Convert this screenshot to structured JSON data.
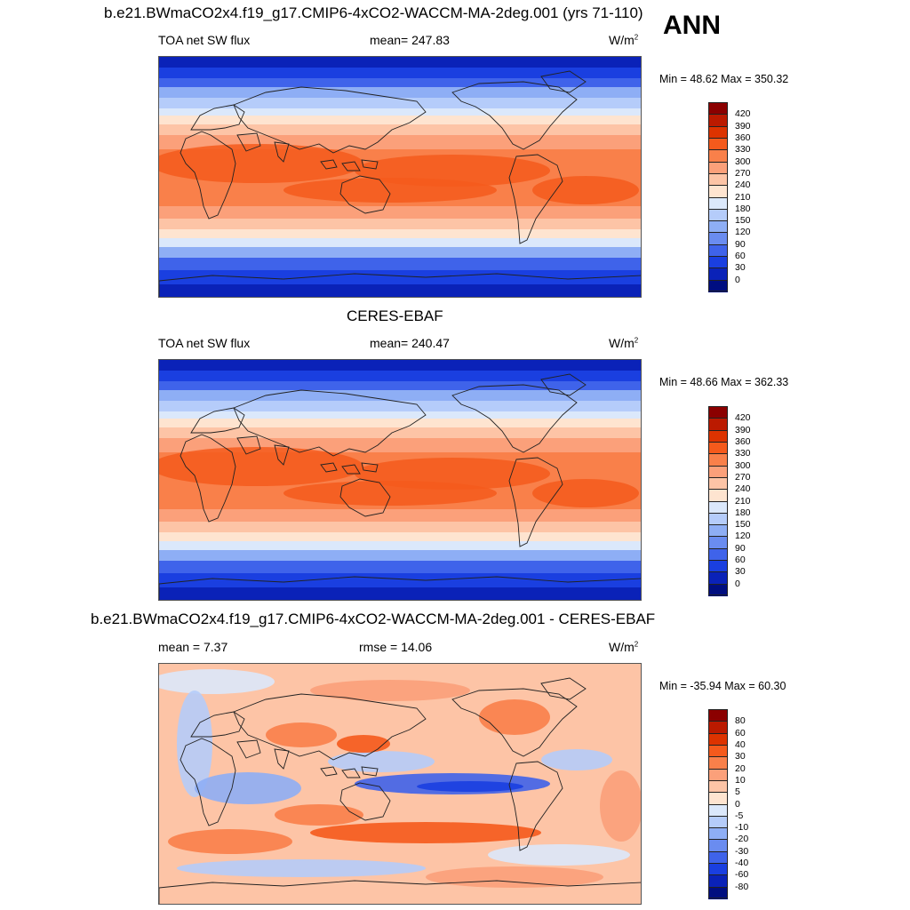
{
  "season": "ANN",
  "panels": [
    {
      "title": "b.e21.BWmaCO2x4.f19_g17.CMIP6-4xCO2-WACCM-MA-2deg.001 (yrs 71-110)",
      "left_label": "TOA net SW flux",
      "center_label": "mean= 247.83",
      "units": "W/m",
      "units_sup": "2",
      "minmax": "Min =  48.62 Max = 350.32",
      "kind": "abs"
    },
    {
      "title": "CERES-EBAF",
      "left_label": "TOA net SW flux",
      "center_label": "mean= 240.47",
      "units": "W/m",
      "units_sup": "2",
      "minmax": "Min =  48.66 Max = 362.33",
      "kind": "abs"
    },
    {
      "title": "b.e21.BWmaCO2x4.f19_g17.CMIP6-4xCO2-WACCM-MA-2deg.001 - CERES-EBAF",
      "left_label": "mean =   7.37",
      "center_label": "rmse =  14.06",
      "units": "W/m",
      "units_sup": "2",
      "minmax": "Min = -35.94 Max =  60.30",
      "kind": "diff"
    }
  ],
  "abs_colorbar": {
    "labels": [
      "420",
      "390",
      "360",
      "330",
      "300",
      "270",
      "240",
      "210",
      "180",
      "150",
      "120",
      "90",
      "60",
      "30",
      "0"
    ],
    "colors": [
      "#8b0000",
      "#bb1a00",
      "#dd3300",
      "#f55a1c",
      "#f9804a",
      "#fba07a",
      "#fdc4a6",
      "#fee4d0",
      "#dbe8fb",
      "#b5ccfa",
      "#8eaef5",
      "#6a8cf0",
      "#3f63ea",
      "#1a3fe0",
      "#0a22b8",
      "#000e80"
    ]
  },
  "diff_colorbar": {
    "labels": [
      "80",
      "60",
      "40",
      "30",
      "20",
      "10",
      "5",
      "0",
      "-5",
      "-10",
      "-20",
      "-30",
      "-40",
      "-60",
      "-80"
    ],
    "colors": [
      "#8b0000",
      "#bb1a00",
      "#dd3300",
      "#f55a1c",
      "#f9804a",
      "#fba07a",
      "#fdc4a6",
      "#fee4d0",
      "#dbe8fb",
      "#b5ccfa",
      "#8eaef5",
      "#6a8cf0",
      "#3f63ea",
      "#1a3fe0",
      "#0a22b8",
      "#000e80"
    ]
  }
}
